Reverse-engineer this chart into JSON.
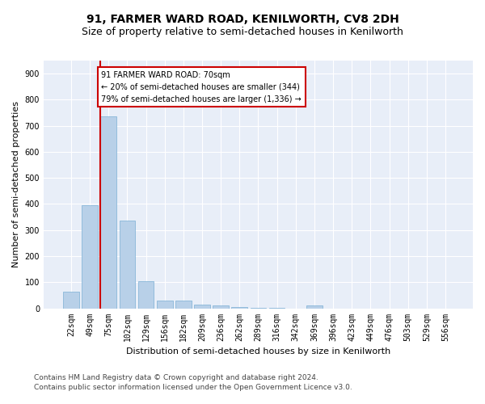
{
  "title1": "91, FARMER WARD ROAD, KENILWORTH, CV8 2DH",
  "title2": "Size of property relative to semi-detached houses in Kenilworth",
  "xlabel": "Distribution of semi-detached houses by size in Kenilworth",
  "ylabel": "Number of semi-detached properties",
  "categories": [
    "22sqm",
    "49sqm",
    "75sqm",
    "102sqm",
    "129sqm",
    "156sqm",
    "182sqm",
    "209sqm",
    "236sqm",
    "262sqm",
    "289sqm",
    "316sqm",
    "342sqm",
    "369sqm",
    "396sqm",
    "423sqm",
    "449sqm",
    "476sqm",
    "503sqm",
    "529sqm",
    "556sqm"
  ],
  "values": [
    65,
    395,
    735,
    335,
    105,
    30,
    30,
    15,
    10,
    5,
    3,
    1,
    0,
    10,
    0,
    0,
    0,
    0,
    0,
    0,
    0
  ],
  "bar_color": "#b8d0e8",
  "bar_edge_color": "#7bafd4",
  "highlight_line_index": 2,
  "highlight_color": "#cc0000",
  "annotation_text": "91 FARMER WARD ROAD: 70sqm\n← 20% of semi-detached houses are smaller (344)\n79% of semi-detached houses are larger (1,336) →",
  "annotation_box_color": "#ffffff",
  "annotation_box_edge_color": "#cc0000",
  "ylim": [
    0,
    950
  ],
  "yticks": [
    0,
    100,
    200,
    300,
    400,
    500,
    600,
    700,
    800,
    900
  ],
  "footer1": "Contains HM Land Registry data © Crown copyright and database right 2024.",
  "footer2": "Contains public sector information licensed under the Open Government Licence v3.0.",
  "background_color": "#e8eef8",
  "grid_color": "#ffffff",
  "title_fontsize": 10,
  "subtitle_fontsize": 9,
  "axis_label_fontsize": 8,
  "tick_fontsize": 7,
  "annotation_fontsize": 7,
  "footer_fontsize": 6.5
}
